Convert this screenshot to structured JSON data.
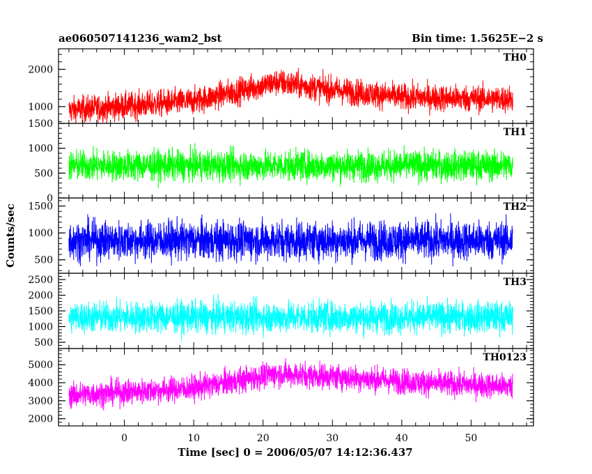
{
  "header": {
    "left_title": "ae060507141236_wam2_bst",
    "right_title": "Bin time: 1.5625E−2 s"
  },
  "axes": {
    "xlabel": "Time [sec] 0 = 2006/05/07 14:12:36.437",
    "ylabel": "Counts/sec"
  },
  "chart_data": {
    "type": "line",
    "x": {
      "range": [
        -9.5,
        59
      ],
      "ticks": [
        0,
        10,
        20,
        30,
        40,
        50
      ],
      "minor_step": 2,
      "data_start": -8,
      "data_end": 56
    },
    "bin_time": 0.015625,
    "panels": [
      {
        "name": "TH0",
        "color": "#ff0000",
        "ylim": [
          550,
          2550
        ],
        "yticks": [
          1000,
          2000
        ],
        "minor_step": 200,
        "trend": [
          [
            -8,
            900
          ],
          [
            10,
            1150
          ],
          [
            22,
            1650
          ],
          [
            30,
            1450
          ],
          [
            40,
            1250
          ],
          [
            56,
            1200
          ]
        ],
        "noise": 330
      },
      {
        "name": "TH1",
        "color": "#00ff00",
        "ylim": [
          0,
          1500
        ],
        "yticks": [
          0,
          500,
          1000,
          1500
        ],
        "minor_step": 100,
        "trend": [
          [
            -8,
            650
          ],
          [
            56,
            650
          ]
        ],
        "noise": 280
      },
      {
        "name": "TH2",
        "color": "#0000ff",
        "ylim": [
          250,
          1650
        ],
        "yticks": [
          500,
          1000,
          1500
        ],
        "minor_step": 100,
        "trend": [
          [
            -8,
            860
          ],
          [
            56,
            860
          ]
        ],
        "noise": 330
      },
      {
        "name": "TH3",
        "color": "#00ffff",
        "ylim": [
          300,
          2700
        ],
        "yticks": [
          500,
          1000,
          1500,
          2000,
          2500
        ],
        "minor_step": 100,
        "trend": [
          [
            -8,
            1300
          ],
          [
            56,
            1300
          ]
        ],
        "noise": 460
      },
      {
        "name": "TH0123",
        "color": "#ff00ff",
        "ylim": [
          1600,
          5900
        ],
        "yticks": [
          2000,
          3000,
          4000,
          5000
        ],
        "minor_step": 200,
        "trend": [
          [
            -8,
            3300
          ],
          [
            10,
            3700
          ],
          [
            22,
            4500
          ],
          [
            30,
            4350
          ],
          [
            45,
            3950
          ],
          [
            56,
            3800
          ]
        ],
        "noise": 650
      }
    ]
  }
}
